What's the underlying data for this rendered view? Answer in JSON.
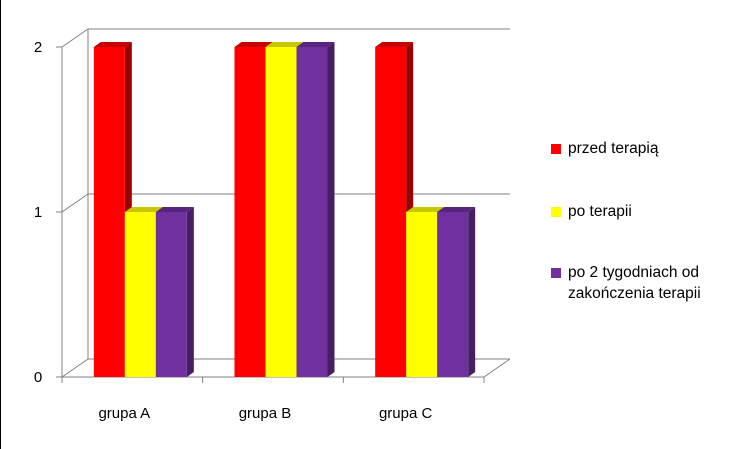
{
  "chart_data": {
    "type": "bar",
    "title": "",
    "xlabel": "",
    "ylabel": "",
    "categories": [
      "grupa A",
      "grupa B",
      "grupa C"
    ],
    "series": [
      {
        "name": "przed terapią",
        "values": [
          2,
          2,
          2
        ],
        "color": "#ff0000"
      },
      {
        "name": "po terapii",
        "values": [
          1,
          2,
          1
        ],
        "color": "#ffff00"
      },
      {
        "name": "po 2 tygodniach od zakończenia terapii",
        "values": [
          1,
          2,
          1
        ],
        "color": "#7030a0"
      }
    ],
    "ylim": [
      0,
      2
    ],
    "yticks": [
      "0",
      "1",
      "2"
    ],
    "grid": true,
    "style": "3d-column",
    "legend_position": "right"
  },
  "legend": {
    "line1": "przed terapią",
    "line2": "po terapii",
    "line3a": "po 2 tygodniach od",
    "line3b": "zakończenia terapii"
  }
}
